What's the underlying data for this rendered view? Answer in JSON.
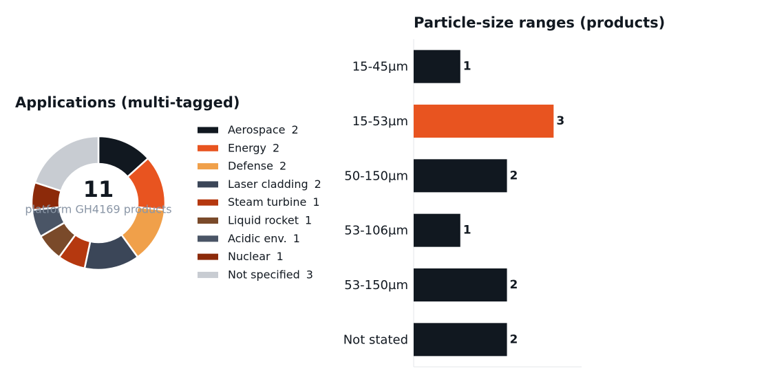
{
  "chart_data": [
    {
      "type": "pie",
      "title": "Applications (multi-tagged)",
      "center_value": 11,
      "center_label": "platform GH4169 products",
      "categories": [
        "Aerospace",
        "Energy",
        "Defense",
        "Laser cladding",
        "Steam turbine",
        "Liquid rocket",
        "Acidic env.",
        "Nuclear",
        "Not specified"
      ],
      "values": [
        2,
        2,
        2,
        2,
        1,
        1,
        1,
        1,
        3
      ],
      "colors": [
        "#111820",
        "#e85420",
        "#f0a04a",
        "#3b4658",
        "#b5380f",
        "#7a4a2a",
        "#4a5566",
        "#8c2a0a",
        "#c8ccd2"
      ]
    },
    {
      "type": "bar",
      "orientation": "horizontal",
      "title": "Particle-size ranges (products)",
      "categories": [
        "15-45µm",
        "15-53µm",
        "50-150µm",
        "53-106µm",
        "53-150µm",
        "Not stated"
      ],
      "values": [
        1,
        3,
        2,
        1,
        2,
        2
      ],
      "colors": [
        "#111820",
        "#e85420",
        "#111820",
        "#111820",
        "#111820",
        "#111820"
      ],
      "xlim": [
        0,
        3.6
      ]
    }
  ]
}
